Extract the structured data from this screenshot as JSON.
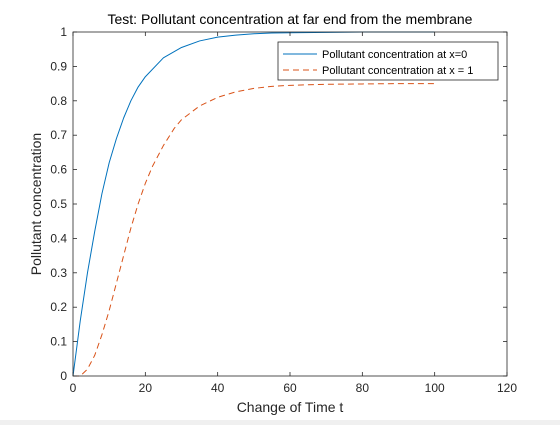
{
  "chart_data": {
    "type": "line",
    "title": "Test: Pollutant concentration at far end from the membrane",
    "xlabel": "Change of Time t",
    "ylabel": "Pollutant concentration",
    "xlim": [
      0,
      120
    ],
    "ylim": [
      0,
      1
    ],
    "xticks": [
      0,
      20,
      40,
      60,
      80,
      100,
      120
    ],
    "yticks": [
      0,
      0.1,
      0.2,
      0.3,
      0.4,
      0.5,
      0.6,
      0.7,
      0.8,
      0.9,
      1
    ],
    "xtick_labels": [
      "0",
      "20",
      "40",
      "60",
      "80",
      "100",
      "120"
    ],
    "ytick_labels": [
      "0",
      "0.1",
      "0.2",
      "0.3",
      "0.4",
      "0.5",
      "0.6",
      "0.7",
      "0.8",
      "0.9",
      "1"
    ],
    "grid": false,
    "legend_position": "top-right",
    "colors": {
      "series1": "#0072bd",
      "series2": "#d95319"
    },
    "series": [
      {
        "name": "Pollutant concentration at x=0",
        "style": "solid",
        "x": [
          0,
          1,
          2,
          4,
          6,
          8,
          10,
          12,
          14,
          16,
          18,
          20,
          25,
          30,
          35,
          40,
          45,
          50,
          55,
          60,
          70,
          80,
          90,
          100
        ],
        "y": [
          0,
          0.08,
          0.16,
          0.3,
          0.42,
          0.53,
          0.62,
          0.69,
          0.75,
          0.8,
          0.84,
          0.87,
          0.925,
          0.955,
          0.974,
          0.985,
          0.991,
          0.995,
          0.997,
          0.998,
          0.999,
          1.0,
          1.0,
          1.0
        ]
      },
      {
        "name": "Pollutant concentration at x = 1",
        "style": "dashed",
        "x": [
          0,
          2,
          4,
          6,
          8,
          10,
          12,
          14,
          16,
          18,
          20,
          22,
          25,
          28,
          30,
          35,
          40,
          45,
          50,
          55,
          60,
          70,
          80,
          90,
          100
        ],
        "y": [
          0,
          0.0,
          0.02,
          0.06,
          0.12,
          0.19,
          0.27,
          0.35,
          0.43,
          0.5,
          0.56,
          0.61,
          0.67,
          0.72,
          0.745,
          0.785,
          0.81,
          0.826,
          0.836,
          0.842,
          0.845,
          0.848,
          0.849,
          0.85,
          0.85
        ]
      }
    ]
  }
}
